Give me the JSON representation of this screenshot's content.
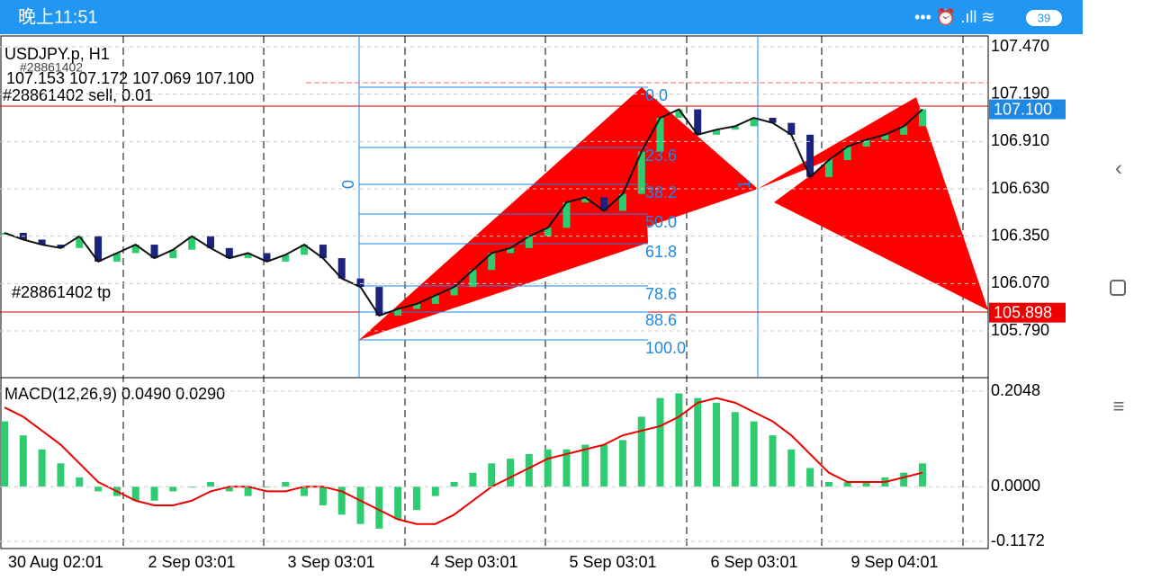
{
  "status_bar": {
    "time": "晚上11:51",
    "battery": "39"
  },
  "chart": {
    "symbol": "USDJPY.p, H1",
    "order_id": "#28861402",
    "ohlc": "107.153 107.172 107.069 107.100",
    "order": "#28861402 sell, 0.01",
    "tp_label": "#28861402 tp",
    "price_axis": [
      {
        "value": 107.47,
        "label": "107.470"
      },
      {
        "value": 107.19,
        "label": "107.190"
      },
      {
        "value": 106.91,
        "label": "106.910"
      },
      {
        "value": 106.63,
        "label": "106.630"
      },
      {
        "value": 106.35,
        "label": "106.350"
      },
      {
        "value": 106.07,
        "label": "106.070"
      },
      {
        "value": 105.79,
        "label": "105.790"
      }
    ],
    "current_price": {
      "value": 107.1,
      "label": "107.100"
    },
    "tp_price": {
      "value": 105.898,
      "label": "105.898"
    },
    "fib_labels": [
      "0.0",
      "23.6",
      "38.2",
      "50.0",
      "61.8",
      "78.6",
      "88.6",
      "100.0"
    ],
    "fib_marker_0": "0",
    "fib_marker_1": "1",
    "closes": [
      106.37,
      106.33,
      106.3,
      106.28,
      106.35,
      106.2,
      106.25,
      106.3,
      106.22,
      106.27,
      106.35,
      106.28,
      106.22,
      106.25,
      106.2,
      106.24,
      106.3,
      106.22,
      106.1,
      106.05,
      105.88,
      105.92,
      105.95,
      106.0,
      106.05,
      106.15,
      106.25,
      106.28,
      106.35,
      106.4,
      106.55,
      106.58,
      106.5,
      106.6,
      106.85,
      107.05,
      107.1,
      106.95,
      106.98,
      107.0,
      107.05,
      107.02,
      106.95,
      106.7,
      106.8,
      106.88,
      106.92,
      106.95,
      107.0,
      107.1
    ],
    "macd_label": "MACD(12,26,9) 0.0490 0.0290",
    "macd_axis": [
      {
        "value": 0.2048,
        "label": "0.2048"
      },
      {
        "value": 0,
        "label": "0.0000"
      },
      {
        "value": -0.1172,
        "label": "-0.1172"
      }
    ],
    "macd_hist": [
      0.14,
      0.11,
      0.08,
      0.05,
      0.02,
      -0.01,
      -0.02,
      -0.03,
      -0.03,
      -0.01,
      0.0,
      0.01,
      -0.01,
      -0.02,
      0.0,
      0.01,
      -0.02,
      -0.04,
      -0.06,
      -0.08,
      -0.09,
      -0.07,
      -0.05,
      -0.02,
      0.01,
      0.03,
      0.05,
      0.06,
      0.07,
      0.08,
      0.08,
      0.09,
      0.09,
      0.1,
      0.15,
      0.19,
      0.2,
      0.19,
      0.18,
      0.16,
      0.14,
      0.11,
      0.08,
      0.04,
      0.01,
      0.01,
      0.01,
      0.02,
      0.03,
      0.05
    ],
    "macd_signal": [
      0.17,
      0.15,
      0.12,
      0.09,
      0.05,
      0.01,
      -0.01,
      -0.03,
      -0.04,
      -0.04,
      -0.03,
      -0.01,
      0.0,
      0.0,
      -0.01,
      -0.01,
      0.0,
      0.0,
      -0.01,
      -0.03,
      -0.05,
      -0.07,
      -0.08,
      -0.08,
      -0.06,
      -0.03,
      0.0,
      0.02,
      0.04,
      0.06,
      0.07,
      0.08,
      0.09,
      0.11,
      0.12,
      0.13,
      0.15,
      0.18,
      0.19,
      0.18,
      0.16,
      0.14,
      0.11,
      0.07,
      0.03,
      0.01,
      0.01,
      0.01,
      0.02,
      0.03
    ],
    "x_labels": [
      "30 Aug 02:01",
      "2 Sep 03:01",
      "3 Sep 03:01",
      "4 Sep 03:01",
      "5 Sep 03:01",
      "6 Sep 03:01",
      "9 Sep 04:01"
    ]
  }
}
